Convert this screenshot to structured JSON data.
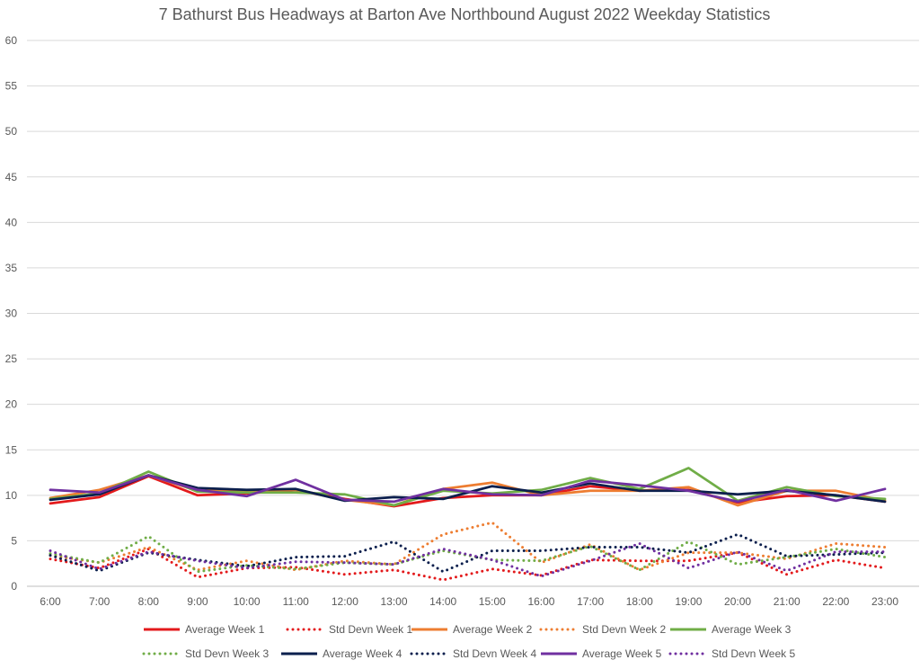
{
  "chart_data": {
    "type": "line",
    "title": "7 Bathurst Bus Headways at Barton Ave Northbound August 2022 Weekday Statistics",
    "xlabel": "",
    "ylabel": "",
    "ylim": [
      0,
      60
    ],
    "yticks": [
      0,
      5,
      10,
      15,
      20,
      25,
      30,
      35,
      40,
      45,
      50,
      55,
      60
    ],
    "grid": true,
    "legend_position": "bottom",
    "categories": [
      "6:00",
      "7:00",
      "8:00",
      "9:00",
      "10:00",
      "11:00",
      "12:00",
      "13:00",
      "14:00",
      "15:00",
      "16:00",
      "17:00",
      "18:00",
      "19:00",
      "20:00",
      "21:00",
      "22:00",
      "23:00"
    ],
    "series": [
      {
        "name": "Average Week 1",
        "color": "#e31a1c",
        "dash": "solid",
        "values": [
          9.1,
          9.8,
          12.1,
          10.0,
          10.2,
          10.6,
          9.6,
          8.8,
          9.7,
          10.0,
          10.0,
          11.0,
          10.5,
          10.6,
          9.2,
          9.9,
          10.0,
          9.3
        ]
      },
      {
        "name": "Std Devn Week 1",
        "color": "#e31a1c",
        "dash": "dotted",
        "values": [
          3.0,
          2.0,
          4.1,
          1.0,
          2.0,
          2.1,
          1.3,
          1.8,
          0.7,
          1.9,
          1.2,
          2.9,
          2.8,
          2.8,
          3.7,
          1.3,
          2.9,
          2.0
        ]
      },
      {
        "name": "Average Week 2",
        "color": "#ed7d31",
        "dash": "solid",
        "values": [
          9.7,
          10.6,
          12.2,
          10.5,
          10.5,
          10.6,
          9.5,
          8.9,
          10.7,
          11.4,
          10.0,
          10.5,
          10.5,
          10.9,
          8.9,
          10.5,
          10.5,
          9.4
        ]
      },
      {
        "name": "Std Devn Week 2",
        "color": "#ed7d31",
        "dash": "dotted",
        "values": [
          3.4,
          2.6,
          4.3,
          1.8,
          2.8,
          1.8,
          2.8,
          2.4,
          5.7,
          7.0,
          2.6,
          4.6,
          1.8,
          3.7,
          3.7,
          3.0,
          4.7,
          4.3
        ]
      },
      {
        "name": "Average Week 3",
        "color": "#70ad47",
        "dash": "solid",
        "values": [
          9.6,
          10.2,
          12.6,
          10.4,
          10.3,
          10.3,
          10.1,
          8.9,
          10.5,
          10.2,
          10.6,
          11.9,
          10.7,
          13.0,
          9.4,
          10.9,
          9.9,
          9.6
        ]
      },
      {
        "name": "Std Devn Week 3",
        "color": "#70ad47",
        "dash": "dotted",
        "values": [
          3.6,
          2.6,
          5.5,
          1.6,
          2.3,
          1.9,
          2.6,
          2.4,
          3.9,
          2.9,
          2.8,
          4.4,
          1.8,
          4.9,
          2.4,
          3.2,
          4.1,
          3.2
        ]
      },
      {
        "name": "Average Week 4",
        "color": "#0b1f4d",
        "dash": "solid",
        "values": [
          9.5,
          10.1,
          12.2,
          10.8,
          10.6,
          10.7,
          9.4,
          9.8,
          9.6,
          11.0,
          10.3,
          11.3,
          10.5,
          10.5,
          10.1,
          10.5,
          10.0,
          9.3
        ]
      },
      {
        "name": "Std Devn Week 4",
        "color": "#0b1f4d",
        "dash": "dotted",
        "values": [
          3.4,
          1.7,
          3.7,
          2.9,
          2.2,
          3.2,
          3.3,
          4.9,
          1.6,
          3.9,
          3.9,
          4.3,
          4.3,
          3.7,
          5.7,
          3.3,
          3.5,
          3.7
        ]
      },
      {
        "name": "Average Week 5",
        "color": "#7030a0",
        "dash": "solid",
        "values": [
          10.6,
          10.3,
          12.2,
          10.6,
          9.9,
          11.7,
          9.5,
          9.3,
          10.7,
          10.1,
          10.0,
          11.6,
          11.1,
          10.5,
          9.3,
          10.6,
          9.4,
          10.7
        ]
      },
      {
        "name": "Std Devn Week 5",
        "color": "#7030a0",
        "dash": "dotted",
        "values": [
          3.9,
          1.9,
          3.8,
          2.8,
          2.0,
          2.7,
          2.6,
          2.4,
          4.1,
          2.9,
          1.1,
          2.8,
          4.7,
          2.0,
          3.8,
          1.7,
          3.8,
          3.8
        ]
      }
    ]
  }
}
